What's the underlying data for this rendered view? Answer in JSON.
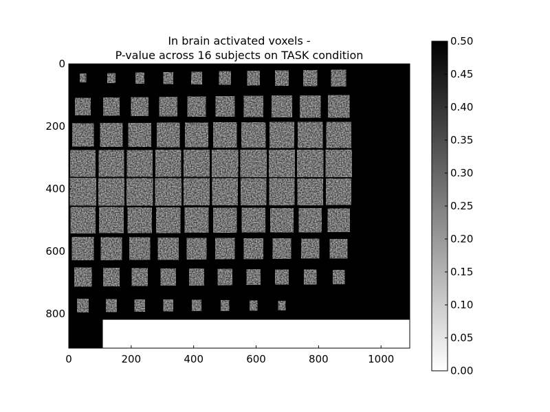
{
  "chart_data": {
    "type": "heatmap",
    "title": [
      "In brain activated voxels -",
      "P-value across 16 subjects on TASK condition"
    ],
    "xlabel": "",
    "ylabel": "",
    "xlim": [
      0,
      1092
    ],
    "ylim": [
      910,
      0
    ],
    "y_inverted": true,
    "x_ticks": [
      0,
      200,
      400,
      600,
      800,
      1000
    ],
    "y_ticks": [
      0,
      200,
      400,
      600,
      800
    ],
    "grid": false,
    "colormap": "gray_r",
    "background_color": "#000000",
    "mosaic": {
      "rows": 9,
      "cols": 10,
      "slice_size": 91,
      "slice_count": 90,
      "blank_region": {
        "x": [
          109,
          1092
        ],
        "y": [
          819,
          910
        ],
        "value": 0.0
      }
    },
    "colorbar": {
      "min": 0.0,
      "max": 0.5,
      "ticks": [
        "0.00",
        "0.05",
        "0.10",
        "0.15",
        "0.20",
        "0.25",
        "0.30",
        "0.35",
        "0.40",
        "0.45",
        "0.50"
      ],
      "position": "right"
    }
  }
}
